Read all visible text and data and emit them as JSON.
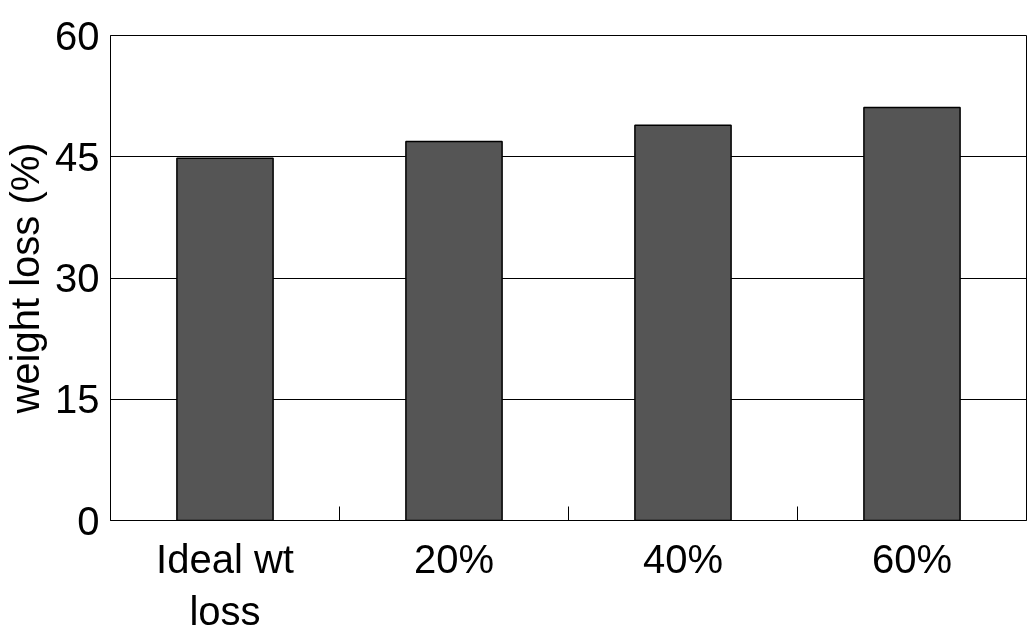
{
  "chart_data": {
    "type": "bar",
    "ylabel": "weight loss (%)",
    "categories": [
      "Ideal wt loss",
      "20%",
      "40%",
      "60%"
    ],
    "values": [
      44.8,
      46.9,
      48.9,
      51.1
    ],
    "color": "#555555",
    "ylim": [
      0,
      60
    ],
    "yticks": [
      0,
      15,
      30,
      45,
      60
    ],
    "grid": "y"
  }
}
